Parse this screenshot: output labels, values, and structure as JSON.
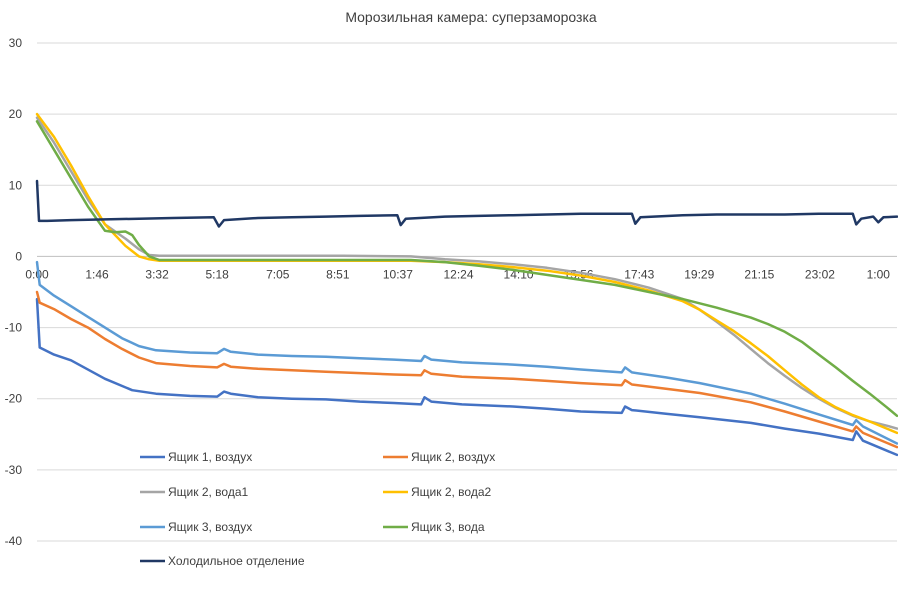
{
  "chart_data": {
    "type": "line",
    "title": "Морозильная камера: суперзаморозка",
    "xlabel": "",
    "ylabel": "",
    "ylim": [
      -40,
      30
    ],
    "yticks": [
      -40,
      -30,
      -20,
      -10,
      0,
      10,
      20,
      30
    ],
    "x_unit": "hours elapsed",
    "xlim": [
      0,
      25.3
    ],
    "x_tick_labels": [
      "0:00",
      "1:46",
      "3:32",
      "5:18",
      "7:05",
      "8:51",
      "10:37",
      "12:24",
      "14:10",
      "15:56",
      "17:43",
      "19:29",
      "21:15",
      "23:02",
      "1:00"
    ],
    "x_tick_positions": [
      0,
      1.767,
      3.533,
      5.3,
      7.083,
      8.85,
      10.617,
      12.4,
      14.167,
      15.933,
      17.717,
      19.483,
      21.25,
      23.033,
      24.75
    ],
    "grid": true,
    "legend_position": "bottom-left",
    "series": [
      {
        "name": "Ящик 1, воздух",
        "color": "#4472c4",
        "points": [
          [
            0,
            -6
          ],
          [
            0.08,
            -12.8
          ],
          [
            0.5,
            -13.8
          ],
          [
            1.0,
            -14.6
          ],
          [
            2.0,
            -17.2
          ],
          [
            2.8,
            -18.8
          ],
          [
            3.5,
            -19.3
          ],
          [
            4.5,
            -19.6
          ],
          [
            5.3,
            -19.7
          ],
          [
            5.5,
            -19.0
          ],
          [
            5.7,
            -19.3
          ],
          [
            6.5,
            -19.8
          ],
          [
            7.5,
            -20.0
          ],
          [
            8.5,
            -20.1
          ],
          [
            9.5,
            -20.4
          ],
          [
            10.5,
            -20.6
          ],
          [
            11.3,
            -20.8
          ],
          [
            11.4,
            -19.8
          ],
          [
            11.6,
            -20.4
          ],
          [
            12.5,
            -20.8
          ],
          [
            14.0,
            -21.1
          ],
          [
            15.0,
            -21.4
          ],
          [
            16.0,
            -21.8
          ],
          [
            17.2,
            -22.0
          ],
          [
            17.3,
            -21.1
          ],
          [
            17.5,
            -21.6
          ],
          [
            18.5,
            -22.1
          ],
          [
            19.5,
            -22.6
          ],
          [
            21.0,
            -23.4
          ],
          [
            22.0,
            -24.2
          ],
          [
            23.0,
            -24.9
          ],
          [
            24.0,
            -25.8
          ],
          [
            24.1,
            -24.6
          ],
          [
            24.3,
            -25.9
          ],
          [
            25.3,
            -27.9
          ]
        ]
      },
      {
        "name": "Ящик 2, воздух",
        "color": "#ed7d31",
        "points": [
          [
            0,
            -5
          ],
          [
            0.08,
            -6.5
          ],
          [
            0.5,
            -7.4
          ],
          [
            1.0,
            -8.8
          ],
          [
            1.5,
            -10.0
          ],
          [
            2.0,
            -11.6
          ],
          [
            2.5,
            -13.0
          ],
          [
            3.0,
            -14.2
          ],
          [
            3.5,
            -15.0
          ],
          [
            4.5,
            -15.4
          ],
          [
            5.3,
            -15.6
          ],
          [
            5.5,
            -15.1
          ],
          [
            5.7,
            -15.5
          ],
          [
            6.5,
            -15.8
          ],
          [
            7.5,
            -16.0
          ],
          [
            8.5,
            -16.2
          ],
          [
            9.5,
            -16.4
          ],
          [
            10.5,
            -16.6
          ],
          [
            11.3,
            -16.7
          ],
          [
            11.4,
            -16.0
          ],
          [
            11.6,
            -16.5
          ],
          [
            12.5,
            -16.9
          ],
          [
            14.0,
            -17.2
          ],
          [
            15.0,
            -17.5
          ],
          [
            16.0,
            -17.8
          ],
          [
            17.2,
            -18.1
          ],
          [
            17.3,
            -17.4
          ],
          [
            17.5,
            -18.0
          ],
          [
            18.5,
            -18.6
          ],
          [
            19.5,
            -19.2
          ],
          [
            21.0,
            -20.5
          ],
          [
            22.0,
            -21.8
          ],
          [
            23.0,
            -23.2
          ],
          [
            24.0,
            -24.6
          ],
          [
            24.1,
            -23.9
          ],
          [
            24.3,
            -24.8
          ],
          [
            25.3,
            -26.8
          ]
        ]
      },
      {
        "name": "Ящик 2, вода1",
        "color": "#a5a5a5",
        "points": [
          [
            0,
            19.5
          ],
          [
            0.5,
            16.0
          ],
          [
            1.0,
            12.0
          ],
          [
            1.5,
            8.0
          ],
          [
            2.0,
            4.5
          ],
          [
            2.3,
            3.5
          ],
          [
            2.6,
            2.5
          ],
          [
            3.0,
            1.0
          ],
          [
            3.3,
            0.2
          ],
          [
            3.6,
            0.1
          ],
          [
            5.0,
            0.1
          ],
          [
            7.0,
            0.1
          ],
          [
            9.0,
            0.1
          ],
          [
            11.0,
            0.0
          ],
          [
            12.0,
            -0.4
          ],
          [
            13.0,
            -0.7
          ],
          [
            14.0,
            -1.1
          ],
          [
            15.0,
            -1.6
          ],
          [
            16.0,
            -2.3
          ],
          [
            17.0,
            -3.2
          ],
          [
            18.0,
            -4.4
          ],
          [
            19.0,
            -6.0
          ],
          [
            19.5,
            -7.5
          ],
          [
            20.0,
            -9.2
          ],
          [
            20.5,
            -11.0
          ],
          [
            21.0,
            -13.0
          ],
          [
            21.5,
            -15.0
          ],
          [
            22.0,
            -16.8
          ],
          [
            22.5,
            -18.5
          ],
          [
            23.0,
            -20.0
          ],
          [
            23.5,
            -21.3
          ],
          [
            24.0,
            -22.4
          ],
          [
            24.5,
            -23.2
          ],
          [
            25.0,
            -23.8
          ],
          [
            25.3,
            -24.2
          ]
        ]
      },
      {
        "name": "Ящик 2, вода2",
        "color": "#ffc000",
        "points": [
          [
            0,
            20.0
          ],
          [
            0.5,
            16.8
          ],
          [
            1.0,
            12.8
          ],
          [
            1.5,
            8.5
          ],
          [
            2.0,
            4.5
          ],
          [
            2.3,
            3.0
          ],
          [
            2.6,
            1.5
          ],
          [
            3.0,
            0.0
          ],
          [
            3.3,
            -0.4
          ],
          [
            3.6,
            -0.6
          ],
          [
            5.0,
            -0.6
          ],
          [
            7.0,
            -0.6
          ],
          [
            9.0,
            -0.6
          ],
          [
            11.0,
            -0.6
          ],
          [
            12.0,
            -0.8
          ],
          [
            13.0,
            -1.1
          ],
          [
            14.0,
            -1.5
          ],
          [
            15.0,
            -2.0
          ],
          [
            16.0,
            -2.7
          ],
          [
            17.0,
            -3.6
          ],
          [
            18.0,
            -4.8
          ],
          [
            19.0,
            -6.3
          ],
          [
            19.5,
            -7.5
          ],
          [
            20.0,
            -9.0
          ],
          [
            20.5,
            -10.5
          ],
          [
            21.0,
            -12.2
          ],
          [
            21.5,
            -14.0
          ],
          [
            22.0,
            -16.0
          ],
          [
            22.5,
            -18.0
          ],
          [
            23.0,
            -19.8
          ],
          [
            23.5,
            -21.2
          ],
          [
            24.0,
            -22.3
          ],
          [
            24.5,
            -23.2
          ],
          [
            25.0,
            -24.2
          ],
          [
            25.3,
            -24.8
          ]
        ]
      },
      {
        "name": "Ящик 3, воздух",
        "color": "#5b9bd5",
        "points": [
          [
            0,
            -0.8
          ],
          [
            0.08,
            -4.0
          ],
          [
            0.5,
            -5.5
          ],
          [
            1.0,
            -7.0
          ],
          [
            1.5,
            -8.5
          ],
          [
            2.0,
            -10.0
          ],
          [
            2.5,
            -11.5
          ],
          [
            3.0,
            -12.6
          ],
          [
            3.5,
            -13.2
          ],
          [
            4.5,
            -13.5
          ],
          [
            5.3,
            -13.6
          ],
          [
            5.5,
            -13.0
          ],
          [
            5.7,
            -13.4
          ],
          [
            6.5,
            -13.8
          ],
          [
            7.5,
            -14.0
          ],
          [
            8.5,
            -14.1
          ],
          [
            9.5,
            -14.3
          ],
          [
            10.5,
            -14.5
          ],
          [
            11.3,
            -14.7
          ],
          [
            11.4,
            -14.0
          ],
          [
            11.6,
            -14.5
          ],
          [
            12.5,
            -14.9
          ],
          [
            14.0,
            -15.2
          ],
          [
            15.0,
            -15.5
          ],
          [
            16.0,
            -15.9
          ],
          [
            17.2,
            -16.3
          ],
          [
            17.3,
            -15.6
          ],
          [
            17.5,
            -16.3
          ],
          [
            18.5,
            -17.0
          ],
          [
            19.5,
            -17.8
          ],
          [
            21.0,
            -19.3
          ],
          [
            22.0,
            -20.7
          ],
          [
            23.0,
            -22.2
          ],
          [
            24.0,
            -23.7
          ],
          [
            24.1,
            -23.0
          ],
          [
            24.3,
            -23.9
          ],
          [
            25.3,
            -26.3
          ]
        ]
      },
      {
        "name": "Ящик 3, вода",
        "color": "#70ad47",
        "points": [
          [
            0,
            19.0
          ],
          [
            0.5,
            15.0
          ],
          [
            1.0,
            11.0
          ],
          [
            1.5,
            7.0
          ],
          [
            2.0,
            3.6
          ],
          [
            2.3,
            3.4
          ],
          [
            2.6,
            3.5
          ],
          [
            2.8,
            3.0
          ],
          [
            3.0,
            1.6
          ],
          [
            3.3,
            0.0
          ],
          [
            3.6,
            -0.5
          ],
          [
            5.0,
            -0.5
          ],
          [
            7.0,
            -0.5
          ],
          [
            9.0,
            -0.5
          ],
          [
            11.0,
            -0.5
          ],
          [
            12.0,
            -0.8
          ],
          [
            13.0,
            -1.3
          ],
          [
            14.0,
            -1.9
          ],
          [
            15.0,
            -2.6
          ],
          [
            16.0,
            -3.3
          ],
          [
            17.0,
            -4.0
          ],
          [
            18.0,
            -5.0
          ],
          [
            19.0,
            -6.0
          ],
          [
            20.0,
            -7.2
          ],
          [
            21.0,
            -8.6
          ],
          [
            21.5,
            -9.5
          ],
          [
            22.0,
            -10.6
          ],
          [
            22.5,
            -12.0
          ],
          [
            23.0,
            -13.8
          ],
          [
            23.5,
            -15.6
          ],
          [
            24.0,
            -17.5
          ],
          [
            24.5,
            -19.3
          ],
          [
            25.0,
            -21.2
          ],
          [
            25.3,
            -22.4
          ]
        ]
      },
      {
        "name": "Холодильное отделение",
        "color": "#203864",
        "points": [
          [
            0,
            10.6
          ],
          [
            0.06,
            5.0
          ],
          [
            0.3,
            5.0
          ],
          [
            1.0,
            5.1
          ],
          [
            2.0,
            5.2
          ],
          [
            3.0,
            5.3
          ],
          [
            4.0,
            5.4
          ],
          [
            5.2,
            5.5
          ],
          [
            5.35,
            4.2
          ],
          [
            5.5,
            5.1
          ],
          [
            6.5,
            5.4
          ],
          [
            7.5,
            5.5
          ],
          [
            8.5,
            5.6
          ],
          [
            9.5,
            5.7
          ],
          [
            10.6,
            5.8
          ],
          [
            10.7,
            4.4
          ],
          [
            10.85,
            5.3
          ],
          [
            12.0,
            5.6
          ],
          [
            13.0,
            5.7
          ],
          [
            14.0,
            5.8
          ],
          [
            15.0,
            5.9
          ],
          [
            16.0,
            6.0
          ],
          [
            17.5,
            6.0
          ],
          [
            17.6,
            4.6
          ],
          [
            17.75,
            5.5
          ],
          [
            19.0,
            5.8
          ],
          [
            20.0,
            5.9
          ],
          [
            21.0,
            5.9
          ],
          [
            22.0,
            5.9
          ],
          [
            23.0,
            6.0
          ],
          [
            24.0,
            6.0
          ],
          [
            24.1,
            4.5
          ],
          [
            24.25,
            5.3
          ],
          [
            24.6,
            5.6
          ],
          [
            24.75,
            4.8
          ],
          [
            24.9,
            5.5
          ],
          [
            25.3,
            5.6
          ]
        ]
      }
    ]
  }
}
